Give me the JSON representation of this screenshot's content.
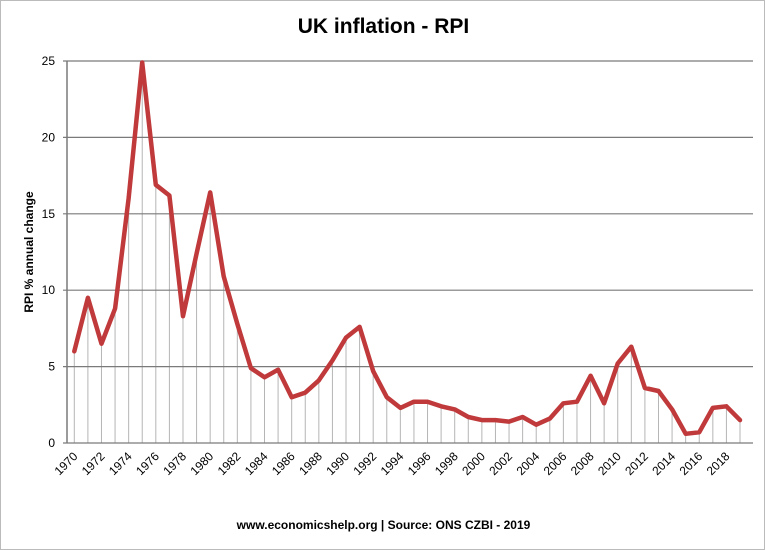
{
  "chart_data": {
    "type": "line",
    "title": "UK inflation - RPI",
    "xlabel": "",
    "ylabel": "RPI % annual change",
    "footer": "www.economicshelp.org | Source: ONS CZBI - 2019",
    "ylim": [
      0,
      25
    ],
    "yticks": [
      0,
      5,
      10,
      15,
      20,
      25
    ],
    "xlim": [
      1970,
      2019
    ],
    "xtick_labels": [
      "1970",
      "1972",
      "1974",
      "1976",
      "1978",
      "1980",
      "1982",
      "1984",
      "1986",
      "1988",
      "1990",
      "1992",
      "1994",
      "1996",
      "1998",
      "2000",
      "2002",
      "2004",
      "2006",
      "2008",
      "2010",
      "2012",
      "2014",
      "2016",
      "2018"
    ],
    "grid": "horizontal major gridlines plus vertical drop lines per year",
    "line_color": "#c0393b",
    "x": [
      1970,
      1971,
      1972,
      1973,
      1974,
      1975,
      1976,
      1977,
      1978,
      1979,
      1980,
      1981,
      1982,
      1983,
      1984,
      1985,
      1986,
      1987,
      1988,
      1989,
      1990,
      1991,
      1992,
      1993,
      1994,
      1995,
      1996,
      1997,
      1998,
      1999,
      2000,
      2001,
      2002,
      2003,
      2004,
      2005,
      2006,
      2007,
      2008,
      2009,
      2010,
      2011,
      2012,
      2013,
      2014,
      2015,
      2016,
      2017,
      2018,
      2019
    ],
    "values": [
      6.0,
      9.5,
      6.5,
      8.8,
      16.0,
      24.9,
      16.9,
      16.2,
      8.3,
      12.4,
      16.4,
      10.9,
      7.8,
      4.9,
      4.3,
      4.8,
      3.0,
      3.3,
      4.1,
      5.4,
      6.9,
      7.6,
      4.7,
      3.0,
      2.3,
      2.7,
      2.7,
      2.4,
      2.2,
      1.7,
      1.5,
      1.5,
      1.4,
      1.7,
      1.2,
      1.6,
      2.6,
      2.7,
      4.4,
      2.6,
      5.2,
      6.3,
      3.6,
      3.4,
      2.2,
      0.6,
      0.7,
      2.3,
      2.4,
      1.5
    ]
  }
}
